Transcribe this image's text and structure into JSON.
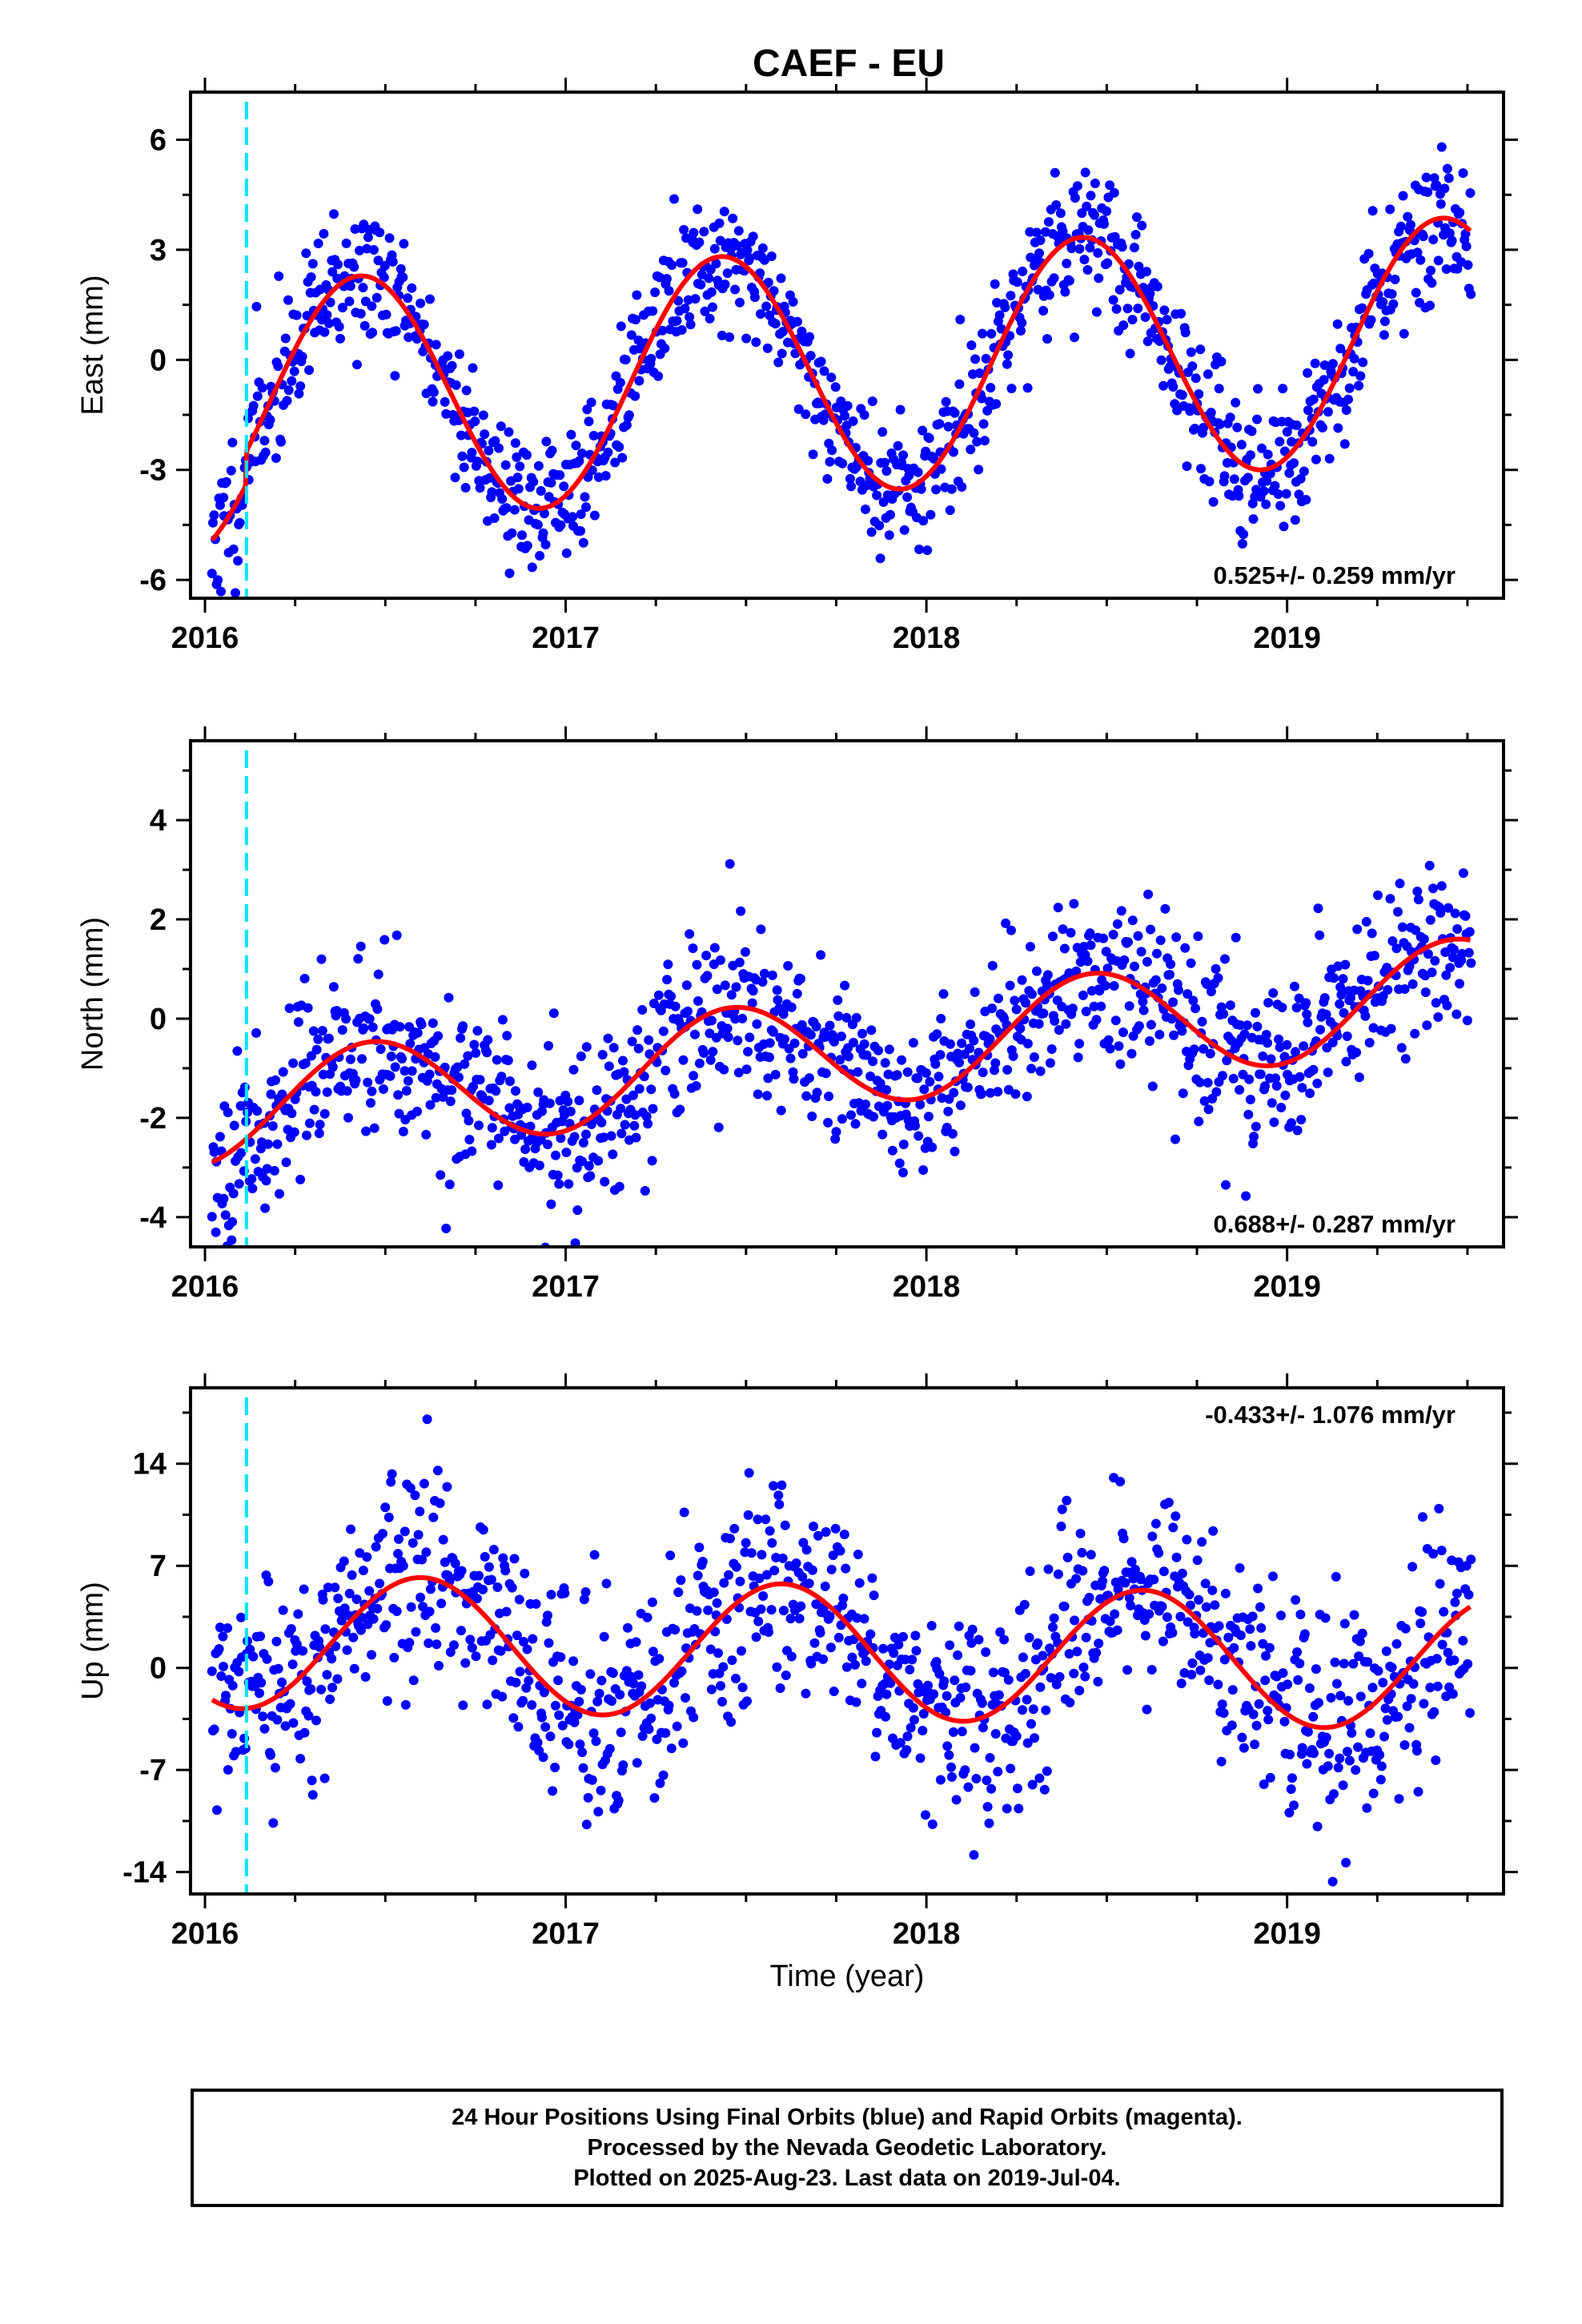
{
  "title": "CAEF - EU",
  "xlabel": "Time (year)",
  "colors": {
    "points": "#0000ff",
    "fit": "#ff0000",
    "marker": "#00e5ff",
    "frame": "#000000"
  },
  "caption": [
    "24 Hour Positions Using Final Orbits (blue) and Rapid Orbits (magenta).",
    "Processed by the Nevada Geodetic Laboratory.",
    "Plotted on 2025-Aug-23. Last data on 2019-Jul-04."
  ],
  "chart_data": [
    {
      "type": "scatter",
      "name": "east",
      "ylabel": "East (mm)",
      "xlim": [
        2015.96,
        2019.6
      ],
      "ylim": [
        -6.5,
        7.3
      ],
      "xticks": [
        2016,
        2017,
        2018,
        2019
      ],
      "yticks": [
        -6,
        -3,
        0,
        3,
        6
      ],
      "rate_label": "0.525+/- 0.259 mm/yr",
      "rate_position": "bottom-right",
      "marker_date": 2016.115,
      "model": {
        "offset": -0.45,
        "rate": 0.525,
        "amplitude": 3.3,
        "peak": 0.43,
        "step_date": 2016.115,
        "step": 0.9,
        "x_start": 2016.02,
        "x_end": 2019.51
      },
      "data": {
        "start": 2016.02,
        "end": 2019.51,
        "scatter": 0.95,
        "count": 1130,
        "seed": 11
      }
    },
    {
      "type": "scatter",
      "name": "north",
      "ylabel": "North (mm)",
      "xlim": [
        2015.96,
        2019.6
      ],
      "ylim": [
        -4.6,
        5.6
      ],
      "xticks": [
        2016,
        2017,
        2018,
        2019
      ],
      "yticks": [
        -4,
        -2,
        0,
        2,
        4
      ],
      "rate_label": "0.688+/- 0.287 mm/yr",
      "rate_position": "bottom-right",
      "marker_date": 2016.115,
      "model": {
        "offset": -0.85,
        "rate": 0.688,
        "amplitude": 1.1,
        "peak": 0.46,
        "step_date": 2016.115,
        "step": 0.0,
        "x_start": 2016.02,
        "x_end": 2019.51
      },
      "data": {
        "start": 2016.02,
        "end": 2019.51,
        "scatter": 0.85,
        "count": 1120,
        "seed": 23
      }
    },
    {
      "type": "scatter",
      "name": "up",
      "ylabel": "Up (mm)",
      "xlim": [
        2015.96,
        2019.6
      ],
      "ylim": [
        -15.5,
        19.2
      ],
      "xticks": [
        2016,
        2017,
        2018,
        2019
      ],
      "yticks": [
        -14,
        -7,
        0,
        7,
        14
      ],
      "rate_label": "-0.433+/- 1.076 mm/yr",
      "rate_position": "top-right",
      "marker_date": 2016.115,
      "model": {
        "offset": 1.2,
        "rate": -0.433,
        "amplitude": 4.6,
        "peak": 0.6,
        "step_date": 2016.115,
        "step": 0.0,
        "x_start": 2016.02,
        "x_end": 2019.51
      },
      "data": {
        "start": 2016.02,
        "end": 2019.51,
        "scatter": 3.6,
        "count": 1100,
        "seed": 37
      }
    }
  ]
}
